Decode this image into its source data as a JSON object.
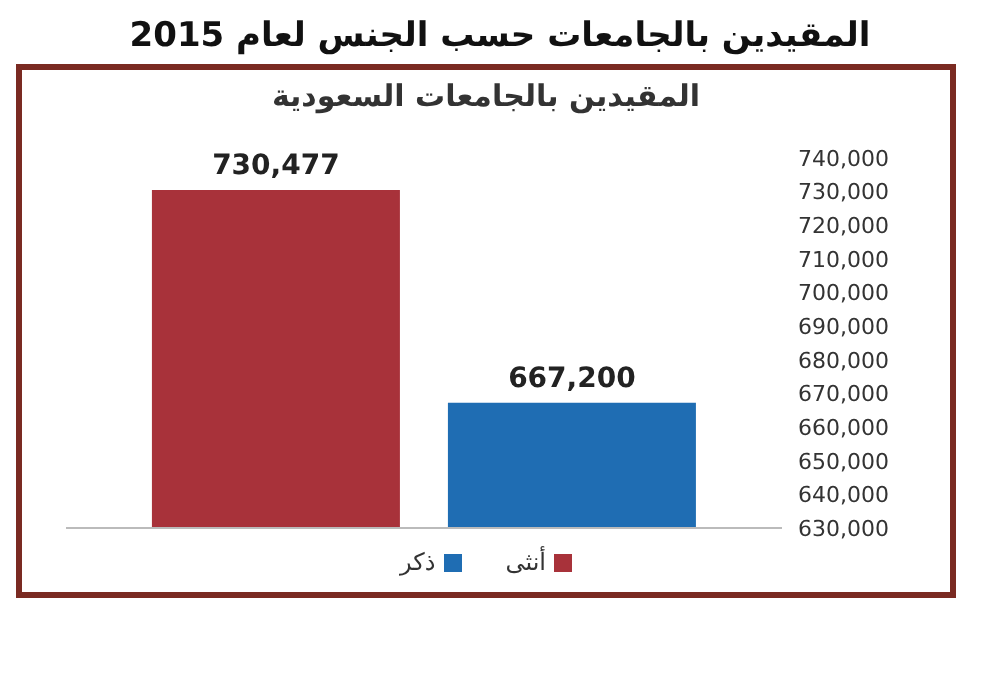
{
  "chart_data": {
    "type": "bar",
    "title": "المقيدين بالجامعات حسب الجنس لعام 2015",
    "subtitle": "المقيدين بالجامعات السعودية",
    "categories": [
      null
    ],
    "series": [
      {
        "name": "أنثى",
        "color": "#a8323a",
        "values": [
          730477
        ],
        "value_labels": [
          "730,477"
        ]
      },
      {
        "name": "ذكر",
        "color": "#1f6db3",
        "values": [
          667200
        ],
        "value_labels": [
          "667,200"
        ]
      }
    ],
    "ylim": [
      630000,
      740000
    ],
    "yticks": [
      {
        "value": 630000,
        "label": "630,000"
      },
      {
        "value": 640000,
        "label": "640,000"
      },
      {
        "value": 650000,
        "label": "650,000"
      },
      {
        "value": 660000,
        "label": "660,000"
      },
      {
        "value": 670000,
        "label": "670,000"
      },
      {
        "value": 680000,
        "label": "680,000"
      },
      {
        "value": 690000,
        "label": "690,000"
      },
      {
        "value": 700000,
        "label": "700,000"
      },
      {
        "value": 710000,
        "label": "710,000"
      },
      {
        "value": 720000,
        "label": "720,000"
      },
      {
        "value": 730000,
        "label": "730,000"
      },
      {
        "value": 740000,
        "label": "740,000"
      }
    ],
    "grid": false,
    "legend": "bottom"
  }
}
